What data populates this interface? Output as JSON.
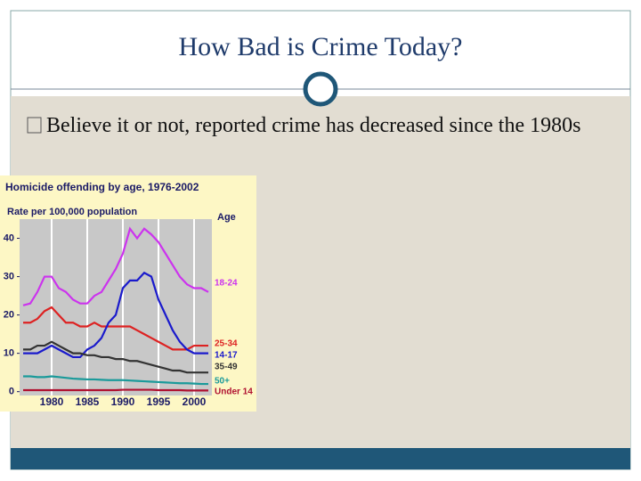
{
  "slide": {
    "title": "How Bad is Crime Today?",
    "bullet": "Believe it or not, reported crime has decreased since the 1980s"
  },
  "chart_data": {
    "type": "line",
    "title": "Homicide offending by age, 1976-2002",
    "subtitle": "Rate per 100,000 population",
    "legend_title": "Age",
    "x": [
      1976,
      1977,
      1978,
      1979,
      1980,
      1981,
      1982,
      1983,
      1984,
      1985,
      1986,
      1987,
      1988,
      1989,
      1990,
      1991,
      1992,
      1993,
      1994,
      1995,
      1996,
      1997,
      1998,
      1999,
      2000,
      2001,
      2002
    ],
    "xlim": [
      1975.5,
      2002.5
    ],
    "xticks": [
      1980,
      1985,
      1990,
      1995,
      2000
    ],
    "ylim": [
      -1,
      45
    ],
    "yticks": [
      0,
      10,
      20,
      30,
      40
    ],
    "grid": true,
    "series": [
      {
        "name": "18-24",
        "color": "#cc33ee",
        "values": [
          22.5,
          23,
          26,
          30,
          30,
          27,
          26,
          24,
          23,
          23,
          25,
          26,
          29,
          32,
          36,
          42.5,
          40,
          42.5,
          41,
          39,
          36,
          33,
          30,
          28,
          27,
          27,
          26
        ]
      },
      {
        "name": "25-34",
        "color": "#dd2222",
        "values": [
          18,
          18,
          19,
          21,
          22,
          20,
          18,
          18,
          17,
          17,
          18,
          17,
          17,
          17,
          17,
          17,
          16,
          15,
          14,
          13,
          12,
          11,
          11,
          11,
          12,
          12,
          12
        ]
      },
      {
        "name": "14-17",
        "color": "#1a1acc",
        "values": [
          10,
          10,
          10,
          11,
          12,
          11,
          10,
          9,
          9,
          11,
          12,
          14,
          18,
          20,
          27,
          29,
          29,
          31,
          30,
          24,
          20,
          16,
          13,
          11,
          10,
          10,
          10
        ]
      },
      {
        "name": "35-49",
        "color": "#333333",
        "values": [
          11,
          11,
          12,
          12,
          13,
          12,
          11,
          10,
          10,
          9.5,
          9.5,
          9,
          9,
          8.5,
          8.5,
          8,
          8,
          7.5,
          7,
          6.5,
          6,
          5.5,
          5.5,
          5,
          5,
          5,
          5
        ]
      },
      {
        "name": "50+",
        "color": "#1a9a9a",
        "values": [
          4,
          4,
          3.8,
          3.8,
          4,
          3.8,
          3.6,
          3.4,
          3.3,
          3.2,
          3.2,
          3.1,
          3,
          3,
          3,
          2.9,
          2.8,
          2.7,
          2.6,
          2.5,
          2.4,
          2.3,
          2.2,
          2.2,
          2.1,
          2,
          2
        ]
      },
      {
        "name": "Under 14",
        "color": "#b01030",
        "values": [
          0.4,
          0.4,
          0.4,
          0.4,
          0.4,
          0.4,
          0.4,
          0.4,
          0.4,
          0.4,
          0.4,
          0.4,
          0.4,
          0.4,
          0.5,
          0.5,
          0.5,
          0.5,
          0.5,
          0.4,
          0.4,
          0.4,
          0.4,
          0.3,
          0.3,
          0.3,
          0.3
        ]
      }
    ]
  }
}
